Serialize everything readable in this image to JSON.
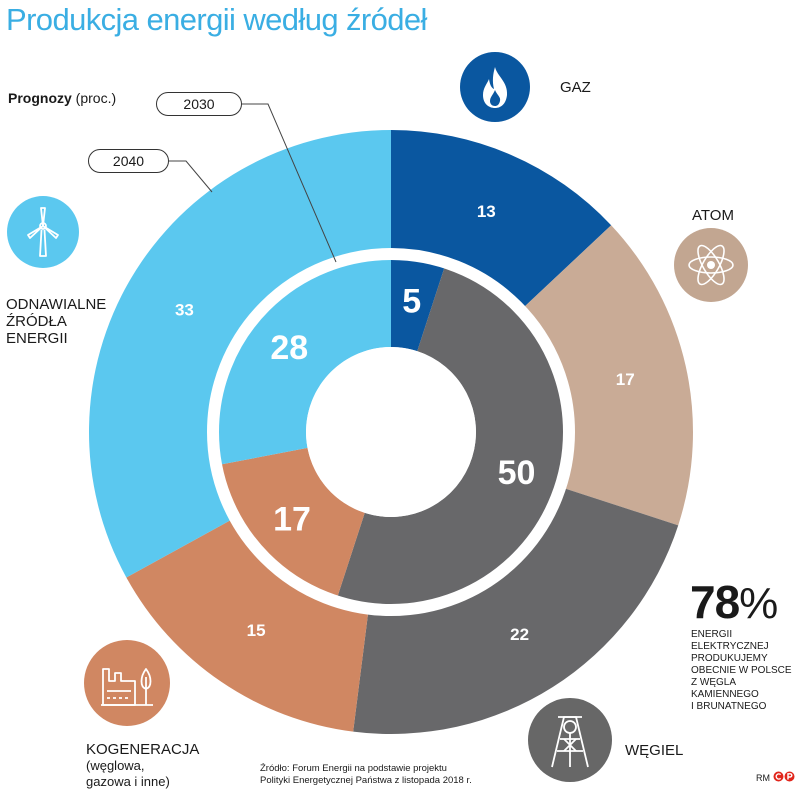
{
  "title": "Produkcja energii według źródeł",
  "subtitle": {
    "bold": "Prognozy",
    "rest": "(proc.)"
  },
  "rings": {
    "inner": "2030",
    "outer": "2040"
  },
  "categories": {
    "gaz": "GAZ",
    "atom": "ATOM",
    "wegiel": "WĘGIEL",
    "kogeneracja": "KOGENERACJA",
    "kogeneracja_sub": [
      "(węglowa,",
      "gazowa i inne)"
    ],
    "oze": [
      "ODNAWIALNE",
      "ŹRÓDŁA",
      "ENERGII"
    ]
  },
  "colors": {
    "gaz": "#0a57a0",
    "atom": "#c9ab96",
    "wegiel": "#68686a",
    "kogeneracja": "#d08762",
    "oze": "#5bc8ef",
    "icon_oze": "#5bc8ef",
    "icon_gaz": "#0a57a0",
    "icon_atom": "#c2a691",
    "icon_kog": "#d08762",
    "icon_wegiel": "#676767"
  },
  "chart_data": {
    "type": "pie",
    "subtype": "nested-donut",
    "unit": "proc.",
    "series": [
      {
        "name": "2040",
        "ring": "outer",
        "slices": [
          {
            "key": "gaz",
            "label": "GAZ",
            "value": 13
          },
          {
            "key": "atom",
            "label": "ATOM",
            "value": 17
          },
          {
            "key": "wegiel",
            "label": "WĘGIEL",
            "value": 22
          },
          {
            "key": "kogeneracja",
            "label": "KOGENERACJA",
            "value": 15
          },
          {
            "key": "oze",
            "label": "ODNAWIALNE ŹRÓDŁA ENERGII",
            "value": 33
          }
        ]
      },
      {
        "name": "2030",
        "ring": "inner",
        "slices": [
          {
            "key": "gaz",
            "label": "GAZ",
            "value": 5
          },
          {
            "key": "wegiel",
            "label": "WĘGIEL",
            "value": 50
          },
          {
            "key": "kogeneracja",
            "label": "KOGENERACJA",
            "value": 17
          },
          {
            "key": "oze",
            "label": "ODNAWIALNE ŹRÓDŁA ENERGII",
            "value": 28
          }
        ]
      }
    ]
  },
  "stat": {
    "value": "78",
    "symbol": "%",
    "description": [
      "ENERGII",
      "ELEKTRYCZNEJ",
      "PRODUKUJEMY",
      "OBECNIE W POLSCE",
      "Z WĘGLA",
      "KAMIENNEGO",
      "I BRUNATNEGO"
    ]
  },
  "source": [
    "Źródło: Forum Energii na podstawie projektu",
    "Polityki Energetycznej Państwa z listopada 2018 r."
  ],
  "credit": "RM",
  "icons": {
    "gaz": "flame-icon",
    "atom": "atom-icon",
    "oze": "wind-turbine-icon",
    "kogeneracja": "factory-leaf-icon",
    "wegiel": "mine-shaft-icon"
  }
}
